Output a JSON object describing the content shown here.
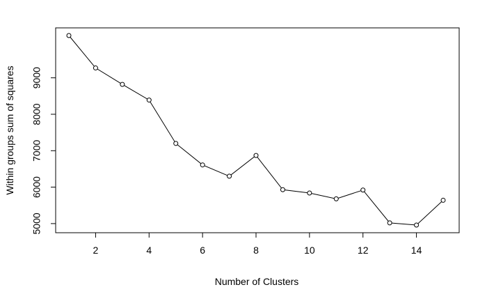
{
  "chart_data": {
    "type": "line",
    "title": "",
    "xlabel": "Number of Clusters",
    "ylabel": "Within groups sum of squares",
    "x": [
      1,
      2,
      3,
      4,
      5,
      6,
      7,
      8,
      9,
      10,
      11,
      12,
      13,
      14,
      15
    ],
    "series": [
      {
        "values": [
          10160,
          9270,
          8820,
          8390,
          7200,
          6610,
          6300,
          6870,
          5930,
          5840,
          5680,
          5920,
          5020,
          4960,
          5640
        ]
      }
    ],
    "xlim": [
      1,
      15
    ],
    "ylim": [
      4960,
      10160
    ],
    "x_ticks": [
      2,
      4,
      6,
      8,
      10,
      12,
      14
    ],
    "y_ticks": [
      5000,
      6000,
      7000,
      8000,
      9000
    ],
    "grid": false,
    "legend": "none",
    "markers": "open-circle",
    "colors": {
      "line": "#000000",
      "marker_fill": "#ffffff",
      "marker_stroke": "#000000"
    }
  }
}
